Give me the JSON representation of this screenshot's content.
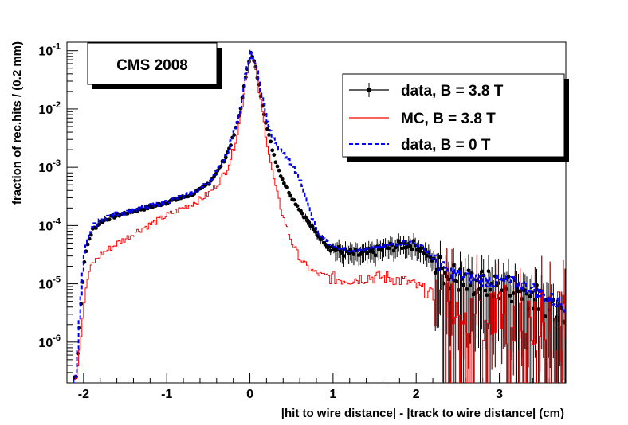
{
  "chart_data": {
    "type": "line",
    "title": "CMS 2008",
    "xlabel": "|hit to wire distance| - |track to wire distance| (cm)",
    "ylabel": "fraction of rec.hits / (0.2 mm)",
    "xlim": [
      -2.2,
      3.8
    ],
    "ylim": [
      2e-07,
      0.14
    ],
    "yscale": "log",
    "x_ticks": [
      -2,
      -1,
      0,
      1,
      2,
      3
    ],
    "x_tick_labels": [
      "-2",
      "-1",
      "0",
      "1",
      "2",
      "3"
    ],
    "y_ticks": [
      {
        "base": "10",
        "exp": "-6",
        "value": 1e-06
      },
      {
        "base": "10",
        "exp": "-5",
        "value": 1e-05
      },
      {
        "base": "10",
        "exp": "-4",
        "value": 0.0001
      },
      {
        "base": "10",
        "exp": "-3",
        "value": 0.001
      },
      {
        "base": "10",
        "exp": "-2",
        "value": 0.01
      },
      {
        "base": "10",
        "exp": "-1",
        "value": 0.1
      }
    ],
    "series": [
      {
        "name": "data, B = 3.8 T",
        "style": "black-markers-with-errors",
        "color": "#000000",
        "points": [
          [
            -2.1,
            2.5e-07
          ],
          [
            -2.05,
            3e-06
          ],
          [
            -2.0,
            2.5e-05
          ],
          [
            -1.95,
            5.5e-05
          ],
          [
            -1.9,
            8.5e-05
          ],
          [
            -1.8,
            0.000115
          ],
          [
            -1.7,
            0.000135
          ],
          [
            -1.6,
            0.00015
          ],
          [
            -1.5,
            0.000165
          ],
          [
            -1.4,
            0.00018
          ],
          [
            -1.3,
            0.000195
          ],
          [
            -1.2,
            0.00021
          ],
          [
            -1.1,
            0.00023
          ],
          [
            -1.0,
            0.000255
          ],
          [
            -0.9,
            0.00028
          ],
          [
            -0.8,
            0.00031
          ],
          [
            -0.7,
            0.00035
          ],
          [
            -0.6,
            0.00041
          ],
          [
            -0.5,
            0.00055
          ],
          [
            -0.4,
            0.00085
          ],
          [
            -0.3,
            0.0015
          ],
          [
            -0.25,
            0.0023
          ],
          [
            -0.2,
            0.0036
          ],
          [
            -0.15,
            0.0065
          ],
          [
            -0.1,
            0.015
          ],
          [
            -0.05,
            0.045
          ],
          [
            0.0,
            0.09
          ],
          [
            0.05,
            0.06
          ],
          [
            0.1,
            0.025
          ],
          [
            0.15,
            0.01
          ],
          [
            0.2,
            0.0045
          ],
          [
            0.25,
            0.0023
          ],
          [
            0.3,
            0.0013
          ],
          [
            0.35,
            0.0008
          ],
          [
            0.4,
            0.00055
          ],
          [
            0.5,
            0.0003
          ],
          [
            0.6,
            0.00018
          ],
          [
            0.7,
            0.00011
          ],
          [
            0.8,
            7e-05
          ],
          [
            0.9,
            5e-05
          ],
          [
            1.0,
            4e-05
          ],
          [
            1.1,
            3.5e-05
          ],
          [
            1.2,
            3.3e-05
          ],
          [
            1.3,
            3.2e-05
          ],
          [
            1.4,
            3.3e-05
          ],
          [
            1.5,
            3.6e-05
          ],
          [
            1.6,
            4e-05
          ],
          [
            1.7,
            4.3e-05
          ],
          [
            1.8,
            4.6e-05
          ],
          [
            1.9,
            4.8e-05
          ],
          [
            2.0,
            4.5e-05
          ],
          [
            2.1,
            3.5e-05
          ],
          [
            2.2,
            2.4e-05
          ],
          [
            2.3,
            1.7e-05
          ],
          [
            2.4,
            1.4e-05
          ],
          [
            2.5,
            1.2e-05
          ],
          [
            2.6,
            1.1e-05
          ],
          [
            2.7,
            1.05e-05
          ],
          [
            2.8,
            1e-05
          ],
          [
            2.9,
            9.5e-06
          ],
          [
            3.0,
            9e-06
          ],
          [
            3.1,
            8.5e-06
          ],
          [
            3.2,
            8e-06
          ],
          [
            3.3,
            7e-06
          ],
          [
            3.4,
            6e-06
          ],
          [
            3.5,
            5e-06
          ],
          [
            3.6,
            4.5e-06
          ],
          [
            3.7,
            4e-06
          ],
          [
            3.78,
            3.5e-06
          ]
        ]
      },
      {
        "name": "MC,  B = 3.8 T",
        "style": "red-step",
        "color": "#ff0000",
        "points": [
          [
            -2.1,
            2.5e-07
          ],
          [
            -2.05,
            1e-06
          ],
          [
            -2.0,
            5e-06
          ],
          [
            -1.95,
            1.5e-05
          ],
          [
            -1.9,
            2.2e-05
          ],
          [
            -1.8,
            3.2e-05
          ],
          [
            -1.7,
            4e-05
          ],
          [
            -1.6,
            5e-05
          ],
          [
            -1.5,
            6e-05
          ],
          [
            -1.4,
            7.5e-05
          ],
          [
            -1.3,
            9e-05
          ],
          [
            -1.2,
            0.000105
          ],
          [
            -1.1,
            0.000125
          ],
          [
            -1.0,
            0.00015
          ],
          [
            -0.9,
            0.000175
          ],
          [
            -0.8,
            0.000205
          ],
          [
            -0.7,
            0.00024
          ],
          [
            -0.6,
            0.000285
          ],
          [
            -0.5,
            0.00036
          ],
          [
            -0.4,
            0.00052
          ],
          [
            -0.3,
            0.00085
          ],
          [
            -0.25,
            0.0013
          ],
          [
            -0.2,
            0.0022
          ],
          [
            -0.15,
            0.0045
          ],
          [
            -0.1,
            0.012
          ],
          [
            -0.05,
            0.04
          ],
          [
            0.0,
            0.085
          ],
          [
            0.05,
            0.055
          ],
          [
            0.1,
            0.02
          ],
          [
            0.15,
            0.007
          ],
          [
            0.2,
            0.0025
          ],
          [
            0.25,
            0.001
          ],
          [
            0.3,
            0.00045
          ],
          [
            0.35,
            0.00023
          ],
          [
            0.4,
            0.00013
          ],
          [
            0.5,
            5e-05
          ],
          [
            0.6,
            2.6e-05
          ],
          [
            0.7,
            1.8e-05
          ],
          [
            0.8,
            1.5e-05
          ],
          [
            0.9,
            1.35e-05
          ],
          [
            1.0,
            1.25e-05
          ],
          [
            1.1,
            1.2e-05
          ],
          [
            1.2,
            1.2e-05
          ],
          [
            1.3,
            1.25e-05
          ],
          [
            1.4,
            1.3e-05
          ],
          [
            1.5,
            1.3e-05
          ],
          [
            1.6,
            1.3e-05
          ],
          [
            1.7,
            1.25e-05
          ],
          [
            1.8,
            1.15e-05
          ],
          [
            1.9,
            1.05e-05
          ],
          [
            2.0,
            9e-06
          ],
          [
            2.1,
            7.5e-06
          ],
          [
            2.2,
            6e-06
          ],
          [
            2.3,
            5e-06
          ],
          [
            2.4,
            4.5e-06
          ],
          [
            2.5,
            4.2e-06
          ],
          [
            2.6,
            4e-06
          ],
          [
            2.7,
            3.8e-06
          ],
          [
            2.8,
            3.6e-06
          ],
          [
            2.9,
            3.4e-06
          ],
          [
            3.0,
            3.2e-06
          ],
          [
            3.1,
            3e-06
          ],
          [
            3.2,
            3e-06
          ],
          [
            3.3,
            2.9e-06
          ],
          [
            3.4,
            2.8e-06
          ],
          [
            3.5,
            2.7e-06
          ],
          [
            3.6,
            2.6e-06
          ],
          [
            3.7,
            2.5e-06
          ],
          [
            3.78,
            2.4e-06
          ]
        ]
      },
      {
        "name": "data, B = 0 T",
        "style": "blue-dashed",
        "color": "#0000ff",
        "points": [
          [
            -2.1,
            2.5e-07
          ],
          [
            -2.05,
            4e-06
          ],
          [
            -2.0,
            3.2e-05
          ],
          [
            -1.95,
            6.5e-05
          ],
          [
            -1.9,
            9.5e-05
          ],
          [
            -1.8,
            0.000125
          ],
          [
            -1.7,
            0.000145
          ],
          [
            -1.6,
            0.00016
          ],
          [
            -1.5,
            0.00017
          ],
          [
            -1.4,
            0.000185
          ],
          [
            -1.3,
            0.0002
          ],
          [
            -1.2,
            0.000215
          ],
          [
            -1.1,
            0.000235
          ],
          [
            -1.0,
            0.00026
          ],
          [
            -0.9,
            0.00029
          ],
          [
            -0.8,
            0.00032
          ],
          [
            -0.7,
            0.00036
          ],
          [
            -0.6,
            0.00043
          ],
          [
            -0.5,
            0.00057
          ],
          [
            -0.4,
            0.00088
          ],
          [
            -0.3,
            0.0016
          ],
          [
            -0.25,
            0.0025
          ],
          [
            -0.2,
            0.0039
          ],
          [
            -0.15,
            0.007
          ],
          [
            -0.1,
            0.016
          ],
          [
            -0.05,
            0.047
          ],
          [
            0.0,
            0.092
          ],
          [
            0.05,
            0.065
          ],
          [
            0.1,
            0.03
          ],
          [
            0.15,
            0.013
          ],
          [
            0.2,
            0.0065
          ],
          [
            0.25,
            0.0038
          ],
          [
            0.3,
            0.0025
          ],
          [
            0.35,
            0.002
          ],
          [
            0.4,
            0.0017
          ],
          [
            0.5,
            0.0011
          ],
          [
            0.6,
            0.00055
          ],
          [
            0.7,
            0.0002
          ],
          [
            0.8,
            8e-05
          ],
          [
            0.9,
            5.5e-05
          ],
          [
            1.0,
            4.5e-05
          ],
          [
            1.1,
            4e-05
          ],
          [
            1.2,
            3.8e-05
          ],
          [
            1.3,
            3.8e-05
          ],
          [
            1.4,
            3.9e-05
          ],
          [
            1.5,
            4.1e-05
          ],
          [
            1.6,
            4.4e-05
          ],
          [
            1.7,
            4.7e-05
          ],
          [
            1.8,
            5e-05
          ],
          [
            1.9,
            5.1e-05
          ],
          [
            2.0,
            4.8e-05
          ],
          [
            2.1,
            3.8e-05
          ],
          [
            2.2,
            2.6e-05
          ],
          [
            2.3,
            1.9e-05
          ],
          [
            2.4,
            1.55e-05
          ],
          [
            2.5,
            1.4e-05
          ],
          [
            2.6,
            1.3e-05
          ],
          [
            2.7,
            1.25e-05
          ],
          [
            2.8,
            1.2e-05
          ],
          [
            2.9,
            1.15e-05
          ],
          [
            3.0,
            1.1e-05
          ],
          [
            3.1,
            1.05e-05
          ],
          [
            3.2,
            1e-05
          ],
          [
            3.3,
            9e-06
          ],
          [
            3.4,
            8e-06
          ],
          [
            3.5,
            6.5e-06
          ],
          [
            3.6,
            5.5e-06
          ],
          [
            3.7,
            4.8e-06
          ],
          [
            3.78,
            4.2e-06
          ]
        ]
      }
    ],
    "legend": {
      "position": "top-right",
      "entries": [
        "data, B = 3.8 T",
        "MC,  B = 3.8 T",
        "data, B = 0 T"
      ]
    }
  }
}
